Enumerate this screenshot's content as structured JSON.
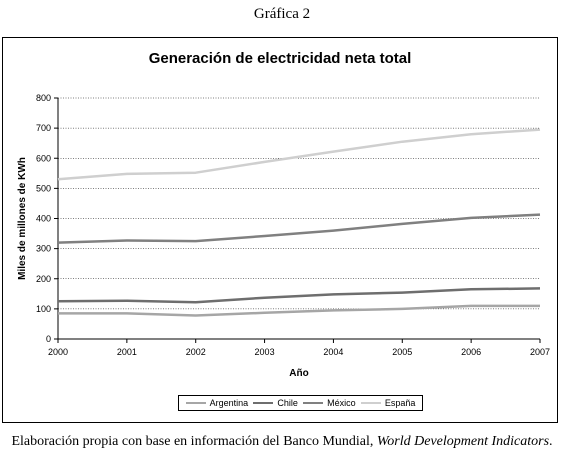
{
  "figure_label": "Gráfica 2",
  "caption": {
    "text": "Elaboración propia con base en información del Banco Mundial, ",
    "italic": "World Development Indicators",
    "end": "."
  },
  "chart_data": {
    "type": "line",
    "title": "Generación de electricidad neta total",
    "xlabel": "Año",
    "ylabel": "Miles de millones de KWh",
    "x": [
      "2000",
      "2001",
      "2002",
      "2003",
      "2004",
      "2005",
      "2006",
      "2007"
    ],
    "ylim": [
      0,
      800
    ],
    "yticks": [
      0,
      100,
      200,
      300,
      400,
      500,
      600,
      700,
      800
    ],
    "grid": true,
    "legend_position": "bottom",
    "series": [
      {
        "name": "Argentina",
        "color": "#a6a6a6",
        "values": [
          85,
          85,
          78,
          87,
          95,
          100,
          110,
          110
        ]
      },
      {
        "name": "Chile",
        "color": "#6e6e6e",
        "values": [
          125,
          127,
          122,
          137,
          148,
          154,
          165,
          168
        ]
      },
      {
        "name": "México",
        "color": "#808080",
        "values": [
          320,
          327,
          325,
          342,
          360,
          382,
          402,
          413
        ]
      },
      {
        "name": "España",
        "color": "#cfcfcf",
        "values": [
          530,
          548,
          552,
          588,
          622,
          655,
          680,
          695
        ]
      }
    ]
  }
}
